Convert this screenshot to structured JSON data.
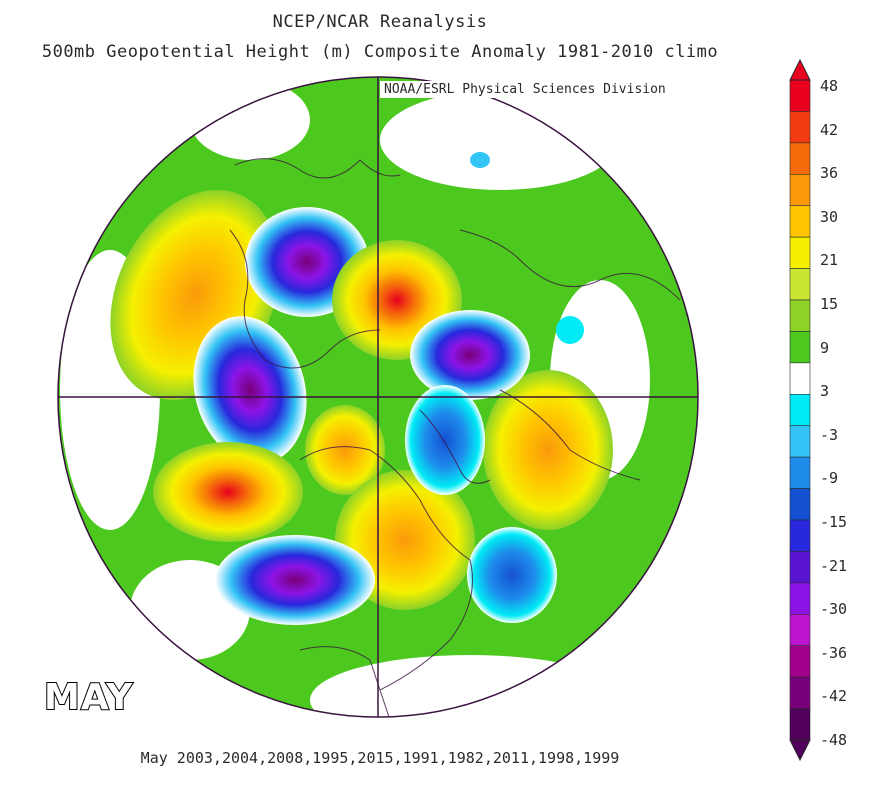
{
  "title": {
    "line1": "NCEP/NCAR Reanalysis",
    "line2": "500mb Geopotential Height (m) Composite Anomaly 1981-2010 climo"
  },
  "credit": "NOAA/ESRL Physical Sciences Division",
  "month_label": "MAY",
  "years_label": "May 2003,2004,2008,1995,2015,1991,1982,2011,1998,1999",
  "colorbar": {
    "labels": [
      "48",
      "42",
      "36",
      "30",
      "21",
      "15",
      "9",
      "3",
      "-3",
      "-9",
      "-15",
      "-21",
      "-30",
      "-36",
      "-42",
      "-48"
    ],
    "colors": [
      "#e8001e",
      "#f03c10",
      "#f56a0a",
      "#fa9a0a",
      "#ffc400",
      "#f5f000",
      "#c8e632",
      "#8cd228",
      "#4cc81e",
      "#ffffff",
      "#00ebf5",
      "#33c3f5",
      "#1e8ceb",
      "#1450d2",
      "#2828dc",
      "#5a14d2",
      "#8c14e6",
      "#be14d2",
      "#a0008c",
      "#780078",
      "#50005a"
    ]
  },
  "map": {
    "projection": "north-polar-stereographic",
    "anomaly_centers": [
      {
        "region": "north-pacific-east",
        "sign": "positive",
        "peak": 27
      },
      {
        "region": "alaska-canada-west",
        "sign": "negative",
        "peak": -30
      },
      {
        "region": "north-pacific-west",
        "sign": "negative",
        "peak": -33
      },
      {
        "region": "east-siberia",
        "sign": "positive",
        "peak": 42
      },
      {
        "region": "kamchatka-pacific",
        "sign": "positive",
        "peak": 42
      },
      {
        "region": "north-atlantic-europe",
        "sign": "positive",
        "peak": 30
      },
      {
        "region": "scandinavia-russia",
        "sign": "negative",
        "peak": -33
      },
      {
        "region": "central-north-america",
        "sign": "negative",
        "peak": -33
      },
      {
        "region": "north-atlantic-south",
        "sign": "negative",
        "peak": -21
      }
    ]
  }
}
